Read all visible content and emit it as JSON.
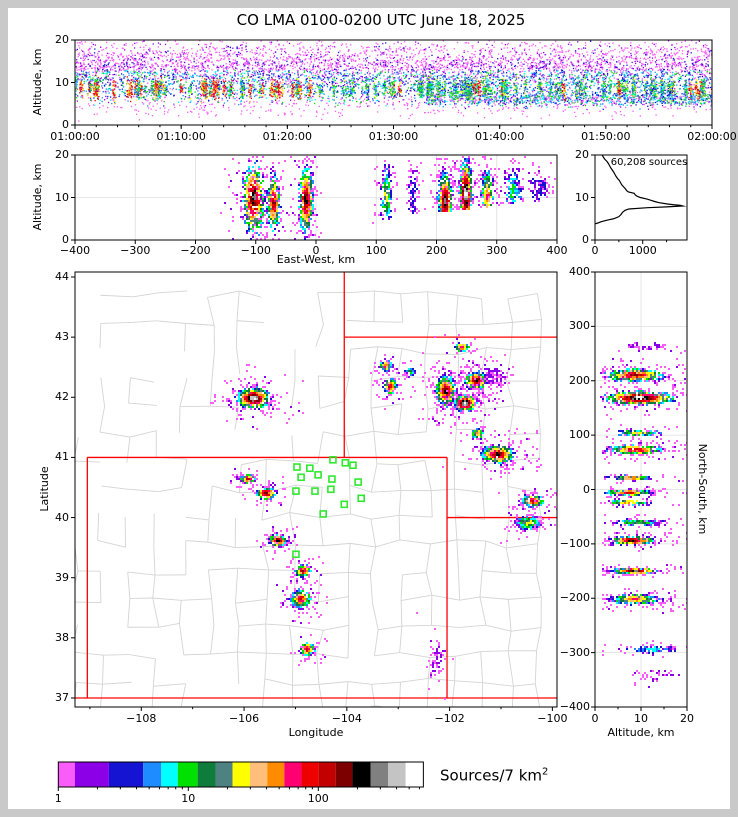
{
  "title": "CO LMA 0100-0200 UTC June 18, 2025",
  "palette": [
    "#fa5cfa",
    "#8c00e8",
    "#1414d2",
    "#1e8cff",
    "#00ffff",
    "#00e100",
    "#0e7d3c",
    "#4e8282",
    "#ffff00",
    "#ffbe7a",
    "#ff8c00",
    "#ff0073",
    "#ee0000",
    "#c30000",
    "#7d0000",
    "#000000",
    "#808080",
    "#c4c4c4",
    "#ffffff"
  ],
  "colors": {
    "state_border": "#ff0000",
    "county_line": "#d4d4d4",
    "station": "#2fe82f",
    "grid": "#dfdfdf",
    "frame": "#000000",
    "profile_line": "#000000"
  },
  "colorbar": {
    "label": "Sources/7 km",
    "label_sup": "2",
    "tick_values": [
      1,
      10,
      100
    ],
    "tick_labels": [
      "1",
      "10",
      "100"
    ],
    "minor_ticks": [
      2,
      3,
      4,
      5,
      6,
      7,
      8,
      9,
      20,
      30,
      40,
      50,
      60,
      70,
      80,
      90,
      200,
      300,
      400,
      500,
      600
    ],
    "boundaries": [
      1,
      1.34,
      2.45,
      4.5,
      6.2,
      8.3,
      11.8,
      16.2,
      21.9,
      29.8,
      40.5,
      54.8,
      74.2,
      100,
      136,
      183,
      252,
      345,
      470,
      643
    ]
  },
  "chart_data": [
    {
      "id": "time_height",
      "type": "scatter",
      "ylabel": "Altitude, km",
      "xlim_minutes": [
        0,
        60
      ],
      "ylim": [
        0,
        20
      ],
      "x_ticks": {
        "values": [
          0,
          10,
          20,
          30,
          40,
          50,
          60
        ],
        "labels": [
          "01:00:00",
          "01:10:00",
          "01:20:00",
          "01:30:00",
          "01:40:00",
          "01:50:00",
          "02:00:00"
        ]
      },
      "y_ticks": {
        "values": [
          0,
          10,
          20
        ],
        "labels": [
          "0",
          "10",
          "20"
        ]
      },
      "minor_step_min": 2,
      "gen": {
        "base": 4200,
        "top": 1600,
        "streaks": 150,
        "lowband": 950,
        "sparse": 380
      }
    },
    {
      "id": "ew_height",
      "type": "scatter",
      "xlabel": "East-West, km",
      "ylabel": "Altitude, km",
      "xlim": [
        -400,
        400
      ],
      "ylim": [
        0,
        20
      ],
      "x_ticks": {
        "values": [
          -400,
          -300,
          -200,
          -100,
          0,
          100,
          200,
          300,
          400
        ],
        "labels": [
          "−400",
          "−300",
          "−200",
          "−100",
          "0",
          "100",
          "200",
          "300",
          "400"
        ]
      },
      "y_ticks": {
        "values": [
          0,
          10,
          20
        ],
        "labels": [
          "0",
          "10",
          "20"
        ]
      },
      "grid_x": [
        -300,
        -200,
        -100,
        0,
        100,
        200,
        300
      ],
      "grid_y": [
        10
      ],
      "clusters": [
        {
          "x": -105,
          "y": 10,
          "sx": 9.2,
          "sy": 4.2,
          "n": 430,
          "peak": 16
        },
        {
          "x": -72,
          "y": 9,
          "sx": 5.4,
          "sy": 3.4,
          "n": 280,
          "peak": 14
        },
        {
          "x": -18,
          "y": 9.5,
          "sx": 5.8,
          "sy": 4.0,
          "n": 420,
          "peak": 15
        },
        {
          "x": 115,
          "y": 10.5,
          "sx": 4.2,
          "sy": 3.6,
          "n": 150,
          "peak": 8
        },
        {
          "x": 160,
          "y": 11,
          "sx": 5.0,
          "sy": 3.3,
          "n": 80,
          "peak": 2
        },
        {
          "x": 213,
          "y": 9.5,
          "sx": 5.8,
          "sy": 3.3,
          "n": 430,
          "peak": 16
        },
        {
          "x": 247,
          "y": 11,
          "sx": 5.0,
          "sy": 4.2,
          "n": 470,
          "peak": 18
        },
        {
          "x": 283,
          "y": 10.5,
          "sx": 5.0,
          "sy": 3.1,
          "n": 230,
          "peak": 11
        },
        {
          "x": 325,
          "y": 12,
          "sx": 8.3,
          "sy": 2.7,
          "n": 150,
          "peak": 5
        },
        {
          "x": 370,
          "y": 12.5,
          "sx": 7.5,
          "sy": 2.1,
          "n": 80,
          "peak": 2
        }
      ]
    },
    {
      "id": "alt_histogram",
      "type": "line",
      "annotation": "60,208 sources",
      "xlim": [
        0,
        1928
      ],
      "ylim": [
        0,
        20
      ],
      "x_ticks": {
        "values": [
          0,
          1000
        ],
        "labels": [
          "0",
          "1000"
        ],
        "minor": [
          500,
          1500
        ]
      },
      "y_ticks": {
        "values": [
          0,
          10,
          20
        ],
        "labels": [
          "0",
          "10",
          "20"
        ]
      },
      "profile_alt_count": [
        [
          3.8,
          0
        ],
        [
          4,
          60
        ],
        [
          4.3,
          130
        ],
        [
          4.6,
          230
        ],
        [
          4.8,
          310
        ],
        [
          5,
          390
        ],
        [
          5.5,
          500
        ],
        [
          6,
          545
        ],
        [
          6.5,
          575
        ],
        [
          7,
          630
        ],
        [
          7.3,
          710
        ],
        [
          7.6,
          1100
        ],
        [
          7.8,
          1500
        ],
        [
          8,
          1840
        ],
        [
          8.15,
          1790
        ],
        [
          8.3,
          1650
        ],
        [
          8.5,
          1500
        ],
        [
          8.8,
          1330
        ],
        [
          9,
          1270
        ],
        [
          9.3,
          1180
        ],
        [
          9.6,
          1100
        ],
        [
          10,
          950
        ],
        [
          10.3,
          880
        ],
        [
          10.6,
          845
        ],
        [
          11,
          820
        ],
        [
          11.3,
          700
        ],
        [
          11.6,
          665
        ],
        [
          12,
          640
        ],
        [
          12.5,
          600
        ],
        [
          13,
          560
        ],
        [
          13.5,
          535
        ],
        [
          14,
          510
        ],
        [
          14.5,
          470
        ],
        [
          15,
          440
        ],
        [
          15.5,
          415
        ],
        [
          16,
          390
        ],
        [
          16.5,
          360
        ],
        [
          17,
          330
        ],
        [
          17.5,
          305
        ],
        [
          18,
          280
        ],
        [
          18.5,
          250
        ],
        [
          19,
          205
        ],
        [
          19.5,
          175
        ],
        [
          20,
          150
        ]
      ]
    },
    {
      "id": "map",
      "type": "scatter",
      "xlabel": "Longitude",
      "ylabel": "Latitude",
      "xlim": [
        -109.29,
        -99.91
      ],
      "ylim": [
        36.85,
        44.083
      ],
      "x_ticks": {
        "values": [
          -108,
          -106,
          -104,
          -102,
          -100
        ],
        "labels": [
          "−108",
          "−106",
          "−104",
          "−102",
          "−100"
        ],
        "minor": [
          -109,
          -107,
          -105,
          -103,
          -101
        ]
      },
      "y_ticks": {
        "values": [
          37,
          38,
          39,
          40,
          41,
          42,
          43,
          44
        ],
        "labels": [
          "37",
          "38",
          "39",
          "40",
          "41",
          "42",
          "43",
          "44"
        ]
      },
      "state_borders": [
        [
          -109.05,
          37,
          -109.05,
          41
        ],
        [
          -104.05,
          41,
          -104.05,
          44.083
        ],
        [
          -102.05,
          37,
          -102.05,
          41
        ],
        [
          -109.05,
          41,
          -102.05,
          41
        ],
        [
          -104.05,
          43,
          -99.91,
          43
        ],
        [
          -102.05,
          40,
          -99.91,
          40
        ],
        [
          -109.29,
          37,
          -99.91,
          37
        ]
      ],
      "stations": [
        [
          -104.27,
          40.96
        ],
        [
          -104.03,
          40.91
        ],
        [
          -103.88,
          40.87
        ],
        [
          -104.72,
          40.82
        ],
        [
          -104.97,
          40.84
        ],
        [
          -104.56,
          40.71
        ],
        [
          -104.89,
          40.67
        ],
        [
          -104.29,
          40.64
        ],
        [
          -104.99,
          40.44
        ],
        [
          -104.62,
          40.44
        ],
        [
          -104.31,
          40.47
        ],
        [
          -103.78,
          40.59
        ],
        [
          -103.72,
          40.32
        ],
        [
          -104.05,
          40.22
        ],
        [
          -104.46,
          40.06
        ],
        [
          -104.99,
          39.39
        ]
      ],
      "clusters": [
        {
          "x": -105.83,
          "y": 42.0,
          "sx": 0.16,
          "sy": 0.083,
          "n": 420,
          "peak": 18
        },
        {
          "x": -105.94,
          "y": 40.66,
          "sx": 0.073,
          "sy": 0.035,
          "n": 85,
          "peak": 13
        },
        {
          "x": -105.59,
          "y": 40.42,
          "sx": 0.089,
          "sy": 0.048,
          "n": 150,
          "peak": 15
        },
        {
          "x": -105.36,
          "y": 39.63,
          "sx": 0.089,
          "sy": 0.048,
          "n": 160,
          "peak": 15
        },
        {
          "x": -104.87,
          "y": 39.13,
          "sx": 0.073,
          "sy": 0.048,
          "n": 115,
          "peak": 14
        },
        {
          "x": -104.91,
          "y": 38.66,
          "sx": 0.097,
          "sy": 0.076,
          "n": 200,
          "peak": 13
        },
        {
          "x": -104.79,
          "y": 37.83,
          "sx": 0.073,
          "sy": 0.055,
          "n": 115,
          "peak": 13
        },
        {
          "x": -102.26,
          "y": 37.71,
          "sx": 0.065,
          "sy": 0.15,
          "n": 55,
          "peak": 1
        },
        {
          "x": -103.26,
          "y": 42.54,
          "sx": 0.057,
          "sy": 0.042,
          "n": 80,
          "peak": 12
        },
        {
          "x": -103.18,
          "y": 42.2,
          "sx": 0.065,
          "sy": 0.069,
          "n": 110,
          "peak": 13
        },
        {
          "x": -102.79,
          "y": 42.44,
          "sx": 0.049,
          "sy": 0.035,
          "n": 45,
          "peak": 6
        },
        {
          "x": -102.09,
          "y": 42.12,
          "sx": 0.097,
          "sy": 0.125,
          "n": 380,
          "peak": 15
        },
        {
          "x": -101.5,
          "y": 42.29,
          "sx": 0.105,
          "sy": 0.069,
          "n": 300,
          "peak": 15
        },
        {
          "x": -101.72,
          "y": 41.92,
          "sx": 0.105,
          "sy": 0.062,
          "n": 330,
          "peak": 18
        },
        {
          "x": -101.78,
          "y": 42.85,
          "sx": 0.073,
          "sy": 0.035,
          "n": 60,
          "peak": 12
        },
        {
          "x": -101.11,
          "y": 42.37,
          "sx": 0.146,
          "sy": 0.069,
          "n": 80,
          "peak": 1
        },
        {
          "x": -101.47,
          "y": 41.41,
          "sx": 0.065,
          "sy": 0.042,
          "n": 70,
          "peak": 10
        },
        {
          "x": -101.08,
          "y": 41.07,
          "sx": 0.162,
          "sy": 0.076,
          "n": 330,
          "peak": 15
        },
        {
          "x": -100.4,
          "y": 40.29,
          "sx": 0.113,
          "sy": 0.048,
          "n": 140,
          "peak": 13
        },
        {
          "x": -100.49,
          "y": 39.93,
          "sx": 0.113,
          "sy": 0.062,
          "n": 150,
          "peak": 8
        }
      ]
    },
    {
      "id": "ns_height",
      "type": "scatter",
      "xlabel": "Altitude, km",
      "ylabel": "North-South, km",
      "xlim": [
        0,
        20
      ],
      "ylim": [
        -400,
        400
      ],
      "x_ticks": {
        "values": [
          0,
          10,
          20
        ],
        "labels": [
          "0",
          "10",
          "20"
        ],
        "minor": [
          5,
          15
        ]
      },
      "y_ticks": {
        "values": [
          400,
          300,
          200,
          100,
          0,
          -100,
          -200,
          -300,
          -400
        ],
        "labels": [
          "400",
          "300",
          "200",
          "100",
          "0",
          "−100",
          "−200",
          "−300",
          "−400"
        ]
      },
      "grid_x": [
        10
      ],
      "grid_y": [
        -300,
        -200,
        -100,
        0,
        100,
        200,
        300
      ],
      "clusters": [
        {
          "x": 9.5,
          "y": 170,
          "sx": 3.8,
          "sy": 5.8,
          "n": 480,
          "peak": 18
        },
        {
          "x": 8.5,
          "y": 212,
          "sx": 3.2,
          "sy": 5.8,
          "n": 380,
          "peak": 14
        },
        {
          "x": 11.5,
          "y": 265,
          "sx": 2.5,
          "sy": 3.3,
          "n": 40,
          "peak": 1
        },
        {
          "x": 9,
          "y": 106,
          "sx": 2.6,
          "sy": 2.5,
          "n": 90,
          "peak": 9
        },
        {
          "x": 8.5,
          "y": 75,
          "sx": 3.0,
          "sy": 4.2,
          "n": 280,
          "peak": 13
        },
        {
          "x": 7.5,
          "y": 23,
          "sx": 2.4,
          "sy": 2.1,
          "n": 80,
          "peak": 11
        },
        {
          "x": 7,
          "y": -4,
          "sx": 2.4,
          "sy": 2.5,
          "n": 160,
          "peak": 13
        },
        {
          "x": 7,
          "y": -22,
          "sx": 2.2,
          "sy": 2.1,
          "n": 90,
          "peak": 11
        },
        {
          "x": 9,
          "y": -59,
          "sx": 2.6,
          "sy": 2.9,
          "n": 110,
          "peak": 7
        },
        {
          "x": 8,
          "y": -92,
          "sx": 2.6,
          "sy": 3.3,
          "n": 260,
          "peak": 15
        },
        {
          "x": 8.5,
          "y": -148,
          "sx": 2.4,
          "sy": 2.5,
          "n": 200,
          "peak": 16
        },
        {
          "x": 8.5,
          "y": -200,
          "sx": 2.6,
          "sy": 4.2,
          "n": 300,
          "peak": 11
        },
        {
          "x": 12,
          "y": -292,
          "sx": 2.8,
          "sy": 3.8,
          "n": 80,
          "peak": 4
        },
        {
          "x": 12.5,
          "y": -340,
          "sx": 2.5,
          "sy": 5.0,
          "n": 28,
          "peak": 1
        }
      ]
    }
  ]
}
